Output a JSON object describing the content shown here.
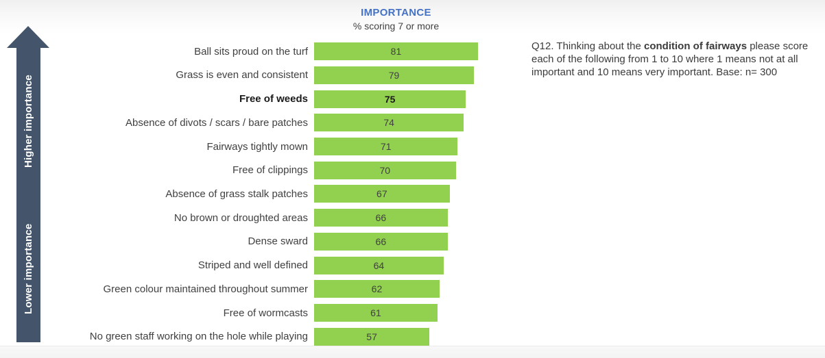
{
  "title": "IMPORTANCE",
  "subtitle": "% scoring 7 or more",
  "arrow": {
    "top_label": "Higher importance",
    "bottom_label": "Lower importance"
  },
  "note": {
    "prefix": "Q12. Thinking about the ",
    "bold": "condition of fairways",
    "suffix": " please score each of the following from 1 to 10 where 1 means not at all important and 10 means very important. Base: n= 300"
  },
  "colors": {
    "title_blue": "#4472C4",
    "bar_green": "#92D050",
    "arrow_slate": "#44546A",
    "text_dark": "#404040"
  },
  "chart_data": {
    "type": "bar",
    "orientation": "horizontal",
    "title": "IMPORTANCE",
    "subtitle": "% scoring 7 or more",
    "value_unit": "% scoring 7 or more",
    "xlim": [
      0,
      100
    ],
    "grid": false,
    "legend": false,
    "value_label_position": "center",
    "bold_category": "Free of weeds",
    "categories": [
      "Ball sits proud on the turf",
      "Grass is even and consistent",
      "Free of weeds",
      "Absence of divots / scars / bare patches",
      "Fairways tightly mown",
      "Free of clippings",
      "Absence of grass stalk patches",
      "No brown or droughted areas",
      "Dense sward",
      "Striped and well defined",
      "Green colour maintained throughout summer",
      "Free of wormcasts",
      "No green staff working on the hole while playing"
    ],
    "values": [
      81,
      79,
      75,
      74,
      71,
      70,
      67,
      66,
      66,
      64,
      62,
      61,
      57
    ]
  }
}
